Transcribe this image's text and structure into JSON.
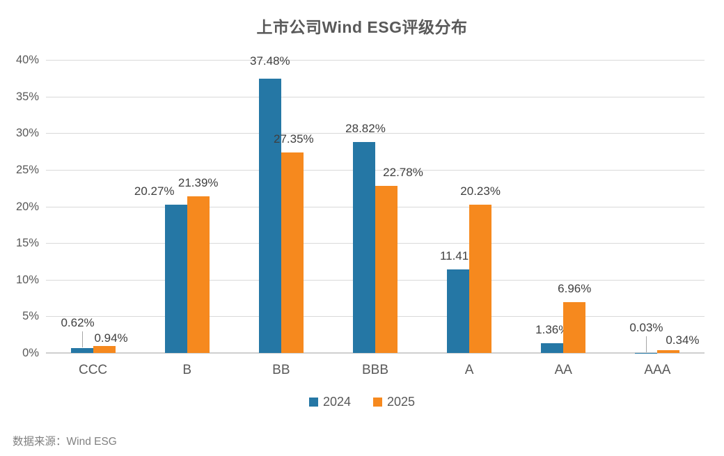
{
  "chart_data": {
    "type": "bar",
    "title": "上市公司Wind ESG评级分布",
    "categories": [
      "CCC",
      "B",
      "BB",
      "BBB",
      "A",
      "AA",
      "AAA"
    ],
    "series": [
      {
        "name": "2024",
        "color": "#2577A5",
        "values": [
          0.62,
          20.27,
          37.48,
          28.82,
          11.41,
          1.36,
          0.03
        ],
        "labels": [
          "0.62%",
          "20.27%",
          "37.48%",
          "28.82%",
          "11.41%",
          "1.36%",
          "0.03%"
        ]
      },
      {
        "name": "2025",
        "color": "#F6891E",
        "values": [
          0.94,
          21.39,
          27.35,
          22.78,
          20.23,
          6.96,
          0.34
        ],
        "labels": [
          "0.94%",
          "21.39%",
          "27.35%",
          "22.78%",
          "20.23%",
          "6.96%",
          "0.34%"
        ]
      }
    ],
    "y_ticks": [
      "0%",
      "5%",
      "10%",
      "15%",
      "20%",
      "25%",
      "30%",
      "35%",
      "40%"
    ],
    "ylim": [
      0,
      40
    ],
    "grid": true,
    "legend_position": "bottom"
  },
  "source_note": "数据来源：Wind ESG",
  "colors": {
    "background": "#FFFFFF",
    "title_text": "#595959",
    "axis_text": "#595959",
    "category_text": "#595959",
    "value_label_text": "#3F3F3F",
    "gridline": "#D9D9D9",
    "axis_line": "#CFCFCF",
    "leader_line": "#A6A6A6",
    "legend_text": "#595959",
    "source_text": "#808080"
  }
}
